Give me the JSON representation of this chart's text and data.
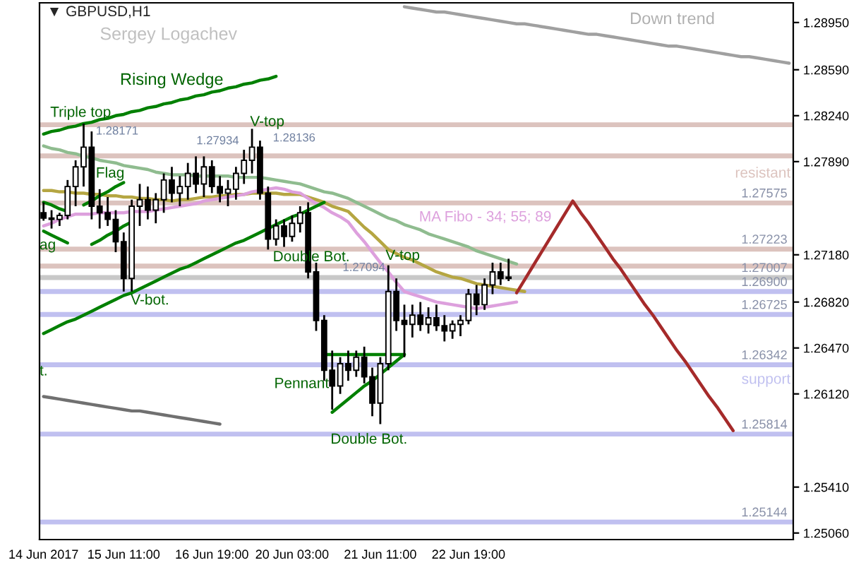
{
  "chart_data": {
    "type": "candlestick",
    "color": "#000000",
    "title": "▼ GBPUSD,H1",
    "subtitle": "Sergey Logachev",
    "categories": [
      "14 Jun 2017",
      null,
      null,
      null,
      null,
      null,
      null,
      null,
      null,
      null,
      "15 Jun 11:00",
      null,
      null,
      null,
      null,
      null,
      null,
      null,
      null,
      null,
      null,
      "16 Jun 19:00",
      null,
      null,
      null,
      null,
      null,
      null,
      null,
      null,
      null,
      "20 Jun 03:00",
      null,
      null,
      null,
      null,
      null,
      null,
      null,
      null,
      null,
      null,
      "21 Jun 11:00",
      null,
      null,
      null,
      null,
      null,
      null,
      null,
      null,
      null,
      null,
      "22 Jun 19:00",
      null,
      null,
      null,
      null,
      null,
      null,
      null,
      null,
      null,
      null,
      null,
      null,
      null,
      null,
      null,
      null,
      null,
      null,
      null,
      null,
      null,
      null,
      null,
      null,
      null,
      null,
      null,
      null,
      null,
      null,
      null,
      null,
      null,
      null,
      null,
      null,
      null,
      null,
      null,
      null
    ],
    "ohlc": [
      [
        1.275,
        1.2758,
        1.2744,
        1.2746
      ],
      [
        1.2746,
        1.2752,
        1.2738,
        1.2745
      ],
      [
        1.2745,
        1.275,
        1.274,
        1.2748
      ],
      [
        1.2748,
        1.2775,
        1.2745,
        1.277
      ],
      [
        1.277,
        1.279,
        1.2755,
        1.2785
      ],
      [
        1.2785,
        1.2818,
        1.277,
        1.28
      ],
      [
        1.28,
        1.2812,
        1.2745,
        1.2755
      ],
      [
        1.2755,
        1.2768,
        1.2738,
        1.275
      ],
      [
        1.275,
        1.2762,
        1.274,
        1.2745
      ],
      [
        1.2745,
        1.2752,
        1.272,
        1.2728
      ],
      [
        1.2728,
        1.2735,
        1.269,
        1.27
      ],
      [
        1.27,
        1.276,
        1.269,
        1.2755
      ],
      [
        1.2755,
        1.2772,
        1.274,
        1.276
      ],
      [
        1.276,
        1.277,
        1.2745,
        1.2752
      ],
      [
        1.2752,
        1.2765,
        1.2742,
        1.276
      ],
      [
        1.276,
        1.278,
        1.275,
        1.2775
      ],
      [
        1.2775,
        1.2785,
        1.2758,
        1.2765
      ],
      [
        1.2765,
        1.2778,
        1.2755,
        1.277
      ],
      [
        1.277,
        1.2788,
        1.276,
        1.278
      ],
      [
        1.278,
        1.2793,
        1.2765,
        1.2772
      ],
      [
        1.2772,
        1.2793,
        1.2762,
        1.2785
      ],
      [
        1.2785,
        1.279,
        1.2765,
        1.277
      ],
      [
        1.277,
        1.2778,
        1.2758,
        1.2765
      ],
      [
        1.2765,
        1.2775,
        1.2755,
        1.2768
      ],
      [
        1.2768,
        1.2785,
        1.276,
        1.278
      ],
      [
        1.278,
        1.2798,
        1.2772,
        1.279
      ],
      [
        1.279,
        1.2814,
        1.278,
        1.28
      ],
      [
        1.28,
        1.2805,
        1.276,
        1.2765
      ],
      [
        1.2765,
        1.277,
        1.2722,
        1.273
      ],
      [
        1.273,
        1.2745,
        1.2725,
        1.274
      ],
      [
        1.274,
        1.2745,
        1.2724,
        1.2732
      ],
      [
        1.2732,
        1.2748,
        1.2728,
        1.2742
      ],
      [
        1.2742,
        1.2755,
        1.2735,
        1.275
      ],
      [
        1.275,
        1.2758,
        1.27,
        1.2705
      ],
      [
        1.2705,
        1.2712,
        1.266,
        1.2668
      ],
      [
        1.2668,
        1.2672,
        1.2622,
        1.263
      ],
      [
        1.263,
        1.2645,
        1.26,
        1.2618
      ],
      [
        1.2618,
        1.264,
        1.2612,
        1.2635
      ],
      [
        1.2635,
        1.2645,
        1.2622,
        1.263
      ],
      [
        1.263,
        1.2645,
        1.2625,
        1.264
      ],
      [
        1.264,
        1.2648,
        1.262,
        1.2625
      ],
      [
        1.2625,
        1.2632,
        1.2595,
        1.2605
      ],
      [
        1.2605,
        1.264,
        1.2589,
        1.2635
      ],
      [
        1.2635,
        1.271,
        1.263,
        1.269
      ],
      [
        1.269,
        1.27,
        1.266,
        1.2668
      ],
      [
        1.2668,
        1.268,
        1.264,
        1.2665
      ],
      [
        1.2665,
        1.268,
        1.2655,
        1.2672
      ],
      [
        1.2672,
        1.2682,
        1.266,
        1.2665
      ],
      [
        1.2665,
        1.2678,
        1.2658,
        1.267
      ],
      [
        1.267,
        1.268,
        1.266,
        1.2664
      ],
      [
        1.2664,
        1.2672,
        1.2652,
        1.266
      ],
      [
        1.266,
        1.2668,
        1.2654,
        1.2665
      ],
      [
        1.2665,
        1.2672,
        1.2656,
        1.2668
      ],
      [
        1.2668,
        1.2692,
        1.2665,
        1.2688
      ],
      [
        1.2688,
        1.2695,
        1.2672,
        1.268
      ],
      [
        1.268,
        1.27,
        1.2676,
        1.2695
      ],
      [
        1.2695,
        1.2712,
        1.2688,
        1.2705
      ],
      [
        1.2705,
        1.2712,
        1.2695,
        1.27
      ],
      [
        1.27,
        1.2715,
        1.2698,
        1.2701
      ],
      null,
      null,
      null,
      null,
      null,
      null,
      null,
      null,
      null,
      null,
      null,
      null,
      null,
      null,
      null,
      null,
      null,
      null,
      null,
      null,
      null,
      null,
      null,
      null,
      null,
      null,
      null,
      null,
      null,
      null,
      null,
      null,
      null,
      null,
      null
    ],
    "series": [
      {
        "type": "line",
        "color": "#8fbc8f",
        "values": [
          1.2801,
          1.2799,
          1.2798,
          1.2796,
          1.2795,
          1.2793,
          1.2792,
          1.279,
          1.2789,
          1.2788,
          1.2786,
          1.2785,
          1.2784,
          1.2783,
          1.2781,
          1.278,
          1.2779,
          1.2779,
          1.2779,
          1.2778,
          1.2778,
          1.2778,
          1.2778,
          1.2778,
          1.2777,
          1.2777,
          1.2777,
          1.2777,
          1.2776,
          1.2775,
          1.2774,
          1.2773,
          1.2772,
          1.277,
          1.2768,
          1.2766,
          1.2765,
          1.2763,
          1.2761,
          1.2758,
          1.2755,
          1.2752,
          1.2749,
          1.2746,
          1.2744,
          1.2741,
          1.2739,
          1.2737,
          1.2734,
          1.2732,
          1.273,
          1.2728,
          1.2726,
          1.2724,
          1.2721,
          1.2719,
          1.2717,
          1.2715,
          1.2713,
          1.2711,
          null,
          null,
          null,
          null,
          null,
          null,
          null,
          null,
          null,
          null,
          null,
          null,
          null,
          null,
          null,
          null,
          null,
          null,
          null,
          null,
          null,
          null,
          null,
          null,
          null,
          null,
          null,
          null,
          null,
          null,
          null,
          null,
          null,
          null
        ]
      },
      {
        "type": "line",
        "color": "#b5a642",
        "values": [
          1.2767,
          1.2767,
          1.2766,
          1.2766,
          1.2765,
          1.2765,
          1.2764,
          1.2764,
          1.2763,
          1.2763,
          1.2762,
          1.2762,
          1.2761,
          1.2761,
          1.276,
          1.276,
          1.2759,
          1.276,
          1.276,
          1.2761,
          1.2762,
          1.2762,
          1.2763,
          1.2763,
          1.2764,
          1.2764,
          1.2765,
          1.2765,
          1.2765,
          1.2765,
          1.2764,
          1.2764,
          1.2764,
          1.2762,
          1.276,
          1.2758,
          1.2755,
          1.2753,
          1.2751,
          1.2745,
          1.2739,
          1.2734,
          1.2728,
          1.2722,
          1.2719,
          1.2716,
          1.2714,
          1.2711,
          1.2708,
          1.2705,
          1.2703,
          1.2701,
          1.27,
          1.2698,
          1.2696,
          1.2695,
          1.2694,
          1.2693,
          1.2692,
          1.2691,
          1.269,
          null,
          null,
          null,
          null,
          null,
          null,
          null,
          null,
          null,
          null,
          null,
          null,
          null,
          null,
          null,
          null,
          null,
          null,
          null,
          null,
          null,
          null,
          null,
          null,
          null,
          null,
          null,
          null,
          null,
          null,
          null,
          null,
          null
        ]
      },
      {
        "type": "line",
        "color": "#dda0dd",
        "values": [
          1.274,
          1.2742,
          1.2745,
          1.2747,
          1.2749,
          1.2749,
          1.2749,
          1.275,
          1.275,
          1.275,
          1.275,
          1.2751,
          1.2751,
          1.2751,
          1.2752,
          1.2753,
          1.2754,
          1.2755,
          1.2756,
          1.2757,
          1.2759,
          1.276,
          1.2761,
          1.2762,
          1.2763,
          1.2764,
          1.2766,
          1.2767,
          1.2768,
          1.2769,
          1.2768,
          1.2766,
          1.2765,
          1.2761,
          1.2757,
          1.2754,
          1.275,
          1.2747,
          1.2743,
          1.2735,
          1.2728,
          1.272,
          1.2712,
          1.2705,
          1.2697,
          1.269,
          1.2688,
          1.2686,
          1.2684,
          1.2682,
          1.2681,
          1.268,
          1.2679,
          1.2678,
          1.2677,
          1.2678,
          1.2679,
          1.268,
          1.2681,
          1.2682,
          null,
          null,
          null,
          null,
          null,
          null,
          null,
          null,
          null,
          null,
          null,
          null,
          null,
          null,
          null,
          null,
          null,
          null,
          null,
          null,
          null,
          null,
          null,
          null,
          null,
          null,
          null,
          null,
          null,
          null,
          null,
          null,
          null,
          null
        ]
      },
      {
        "type": "line",
        "color": "#008000",
        "values": [
          1.281,
          1.2812,
          1.2813,
          1.2815,
          1.2816,
          1.2818,
          1.2819,
          1.2821,
          1.2822,
          1.2824,
          1.2825,
          1.2827,
          1.2828,
          1.283,
          1.2831,
          1.2833,
          1.2834,
          1.2836,
          1.2837,
          1.2839,
          1.284,
          1.2842,
          1.2843,
          1.2845,
          1.2846,
          1.2848,
          1.2849,
          1.2851,
          1.2852,
          1.2854,
          null,
          null,
          null,
          null,
          null,
          null,
          null,
          null,
          null,
          null,
          null,
          null,
          null,
          null,
          null,
          null,
          null,
          null,
          null,
          null,
          null,
          null,
          null,
          null,
          null,
          null,
          null,
          null,
          null,
          null,
          null,
          null,
          null,
          null,
          null,
          null,
          null,
          null,
          null,
          null,
          null,
          null,
          null,
          null,
          null,
          null,
          null,
          null,
          null,
          null,
          null,
          null,
          null,
          null,
          null,
          null,
          null,
          null,
          null,
          null,
          null,
          null,
          null,
          null
        ]
      },
      {
        "type": "line",
        "color": "#008000",
        "values": [
          1.2658,
          1.2661,
          1.2664,
          1.2667,
          1.2669,
          1.2672,
          1.2675,
          1.2678,
          1.2681,
          1.2684,
          1.2687,
          1.2689,
          1.2692,
          1.2695,
          1.2698,
          1.2701,
          1.2704,
          1.2707,
          1.2709,
          1.2712,
          1.2715,
          1.2718,
          1.2721,
          1.2724,
          1.2727,
          1.2729,
          1.2732,
          1.2735,
          1.2738,
          1.2741,
          1.2744,
          1.2747,
          1.2749,
          1.2752,
          1.2755,
          1.2758,
          null,
          null,
          null,
          null,
          null,
          null,
          null,
          null,
          null,
          null,
          null,
          null,
          null,
          null,
          null,
          null,
          null,
          null,
          null,
          null,
          null,
          null,
          null,
          null,
          null,
          null,
          null,
          null,
          null,
          null,
          null,
          null,
          null,
          null,
          null,
          null,
          null,
          null,
          null,
          null,
          null,
          null,
          null,
          null,
          null,
          null,
          null,
          null,
          null,
          null,
          null,
          null,
          null,
          null,
          null,
          null,
          null,
          null
        ]
      },
      {
        "type": "line",
        "color": "#008000",
        "values": [
          1.2758,
          1.2756,
          1.2753,
          1.2751,
          null,
          null,
          null,
          null,
          null,
          null,
          null,
          null,
          null,
          null,
          null,
          null,
          null,
          null,
          null,
          null,
          null,
          null,
          null,
          null,
          null,
          null,
          null,
          null,
          null,
          null,
          null,
          null,
          null,
          null,
          null,
          null,
          null,
          null,
          null,
          null,
          null,
          null,
          null,
          null,
          null,
          null,
          null,
          null,
          null,
          null,
          null,
          null,
          null,
          null,
          null,
          null,
          null,
          null,
          null,
          null,
          null,
          null,
          null,
          null,
          null,
          null,
          null,
          null,
          null,
          null,
          null,
          null,
          null,
          null,
          null,
          null,
          null,
          null,
          null,
          null,
          null,
          null,
          null,
          null,
          null,
          null,
          null,
          null,
          null,
          null,
          null,
          null,
          null,
          null
        ]
      },
      {
        "type": "line",
        "color": "#008000",
        "values": [
          1.2736,
          1.2733,
          1.273,
          1.2727,
          null,
          null,
          null,
          null,
          null,
          null,
          null,
          null,
          null,
          null,
          null,
          null,
          null,
          null,
          null,
          null,
          null,
          null,
          null,
          null,
          null,
          null,
          null,
          null,
          null,
          null,
          null,
          null,
          null,
          null,
          null,
          null,
          null,
          null,
          null,
          null,
          null,
          null,
          null,
          null,
          null,
          null,
          null,
          null,
          null,
          null,
          null,
          null,
          null,
          null,
          null,
          null,
          null,
          null,
          null,
          null,
          null,
          null,
          null,
          null,
          null,
          null,
          null,
          null,
          null,
          null,
          null,
          null,
          null,
          null,
          null,
          null,
          null,
          null,
          null,
          null,
          null,
          null,
          null,
          null,
          null,
          null,
          null,
          null,
          null,
          null,
          null,
          null,
          null,
          null
        ]
      },
      {
        "type": "line",
        "color": "#008000",
        "values": [
          null,
          null,
          null,
          null,
          null,
          1.2756,
          1.2759,
          1.2763,
          1.2766,
          1.277,
          1.2773,
          null,
          null,
          null,
          null,
          null,
          null,
          null,
          null,
          null,
          null,
          null,
          null,
          null,
          null,
          null,
          null,
          null,
          null,
          null,
          null,
          null,
          null,
          null,
          null,
          null,
          null,
          null,
          null,
          null,
          null,
          null,
          null,
          null,
          null,
          null,
          null,
          null,
          null,
          null,
          null,
          null,
          null,
          null,
          null,
          null,
          null,
          null,
          null,
          null,
          null,
          null,
          null,
          null,
          null,
          null,
          null,
          null,
          null,
          null,
          null,
          null,
          null,
          null,
          null,
          null,
          null,
          null,
          null,
          null,
          null,
          null,
          null,
          null,
          null,
          null,
          null,
          null,
          null,
          null,
          null,
          null,
          null,
          null
        ]
      },
      {
        "type": "line",
        "color": "#008000",
        "values": [
          null,
          null,
          null,
          null,
          null,
          null,
          1.2726,
          1.2729,
          1.2733,
          1.2736,
          1.274,
          1.2743,
          null,
          null,
          null,
          null,
          null,
          null,
          null,
          null,
          null,
          null,
          null,
          null,
          null,
          null,
          null,
          null,
          null,
          null,
          null,
          null,
          null,
          null,
          null,
          null,
          null,
          null,
          null,
          null,
          null,
          null,
          null,
          null,
          null,
          null,
          null,
          null,
          null,
          null,
          null,
          null,
          null,
          null,
          null,
          null,
          null,
          null,
          null,
          null,
          null,
          null,
          null,
          null,
          null,
          null,
          null,
          null,
          null,
          null,
          null,
          null,
          null,
          null,
          null,
          null,
          null,
          null,
          null,
          null,
          null,
          null,
          null,
          null,
          null,
          null,
          null,
          null,
          null,
          null,
          null,
          null,
          null,
          null
        ]
      },
      {
        "type": "line",
        "color": "#008000",
        "values": [
          null,
          null,
          null,
          null,
          null,
          null,
          null,
          null,
          null,
          null,
          null,
          null,
          null,
          null,
          null,
          null,
          null,
          null,
          null,
          null,
          null,
          null,
          null,
          null,
          null,
          null,
          null,
          null,
          null,
          null,
          null,
          null,
          null,
          null,
          null,
          1.2642,
          1.2642,
          1.2642,
          1.2642,
          1.2642,
          1.2642,
          1.2642,
          1.2642,
          1.2642,
          1.2642,
          1.2642,
          null,
          null,
          null,
          null,
          null,
          null,
          null,
          null,
          null,
          null,
          null,
          null,
          null,
          null,
          null,
          null,
          null,
          null,
          null,
          null,
          null,
          null,
          null,
          null,
          null,
          null,
          null,
          null,
          null,
          null,
          null,
          null,
          null,
          null,
          null,
          null,
          null,
          null,
          null,
          null,
          null,
          null,
          null,
          null,
          null,
          null,
          null,
          null
        ]
      },
      {
        "type": "line",
        "color": "#008000",
        "values": [
          null,
          null,
          null,
          null,
          null,
          null,
          null,
          null,
          null,
          null,
          null,
          null,
          null,
          null,
          null,
          null,
          null,
          null,
          null,
          null,
          null,
          null,
          null,
          null,
          null,
          null,
          null,
          null,
          null,
          null,
          null,
          null,
          null,
          null,
          null,
          null,
          1.2598,
          1.2603,
          1.2608,
          1.2613,
          1.2618,
          1.2622,
          1.2627,
          1.2632,
          1.2637,
          1.2642,
          null,
          null,
          null,
          null,
          null,
          null,
          null,
          null,
          null,
          null,
          null,
          null,
          null,
          null,
          null,
          null,
          null,
          null,
          null,
          null,
          null,
          null,
          null,
          null,
          null,
          null,
          null,
          null,
          null,
          null,
          null,
          null,
          null,
          null,
          null,
          null,
          null,
          null,
          null,
          null,
          null,
          null,
          null,
          null,
          null,
          null,
          null,
          null
        ]
      },
      {
        "type": "line",
        "color": "#a0a0a0",
        "values": [
          null,
          null,
          null,
          null,
          null,
          null,
          null,
          null,
          null,
          null,
          null,
          null,
          null,
          null,
          null,
          null,
          null,
          null,
          null,
          null,
          null,
          null,
          null,
          null,
          null,
          null,
          null,
          null,
          null,
          null,
          null,
          null,
          null,
          null,
          null,
          null,
          null,
          null,
          null,
          null,
          null,
          null,
          null,
          null,
          null,
          1.2907,
          1.2906,
          1.2905,
          1.2904,
          1.2903,
          1.2903,
          1.2902,
          1.2901,
          1.29,
          1.2899,
          1.2898,
          1.2897,
          1.2896,
          1.2895,
          1.2894,
          1.2894,
          1.2893,
          1.2892,
          1.2891,
          1.289,
          1.2889,
          1.2888,
          1.2887,
          1.2886,
          1.2886,
          1.2885,
          1.2884,
          1.2883,
          1.2882,
          1.2881,
          1.288,
          1.2879,
          1.2878,
          1.2877,
          1.2877,
          1.2876,
          1.2875,
          1.2874,
          1.2873,
          1.2872,
          1.2871,
          1.287,
          1.2869,
          1.2869,
          1.2868,
          1.2867,
          1.2866,
          1.2865,
          1.2864
        ]
      },
      {
        "type": "line",
        "color": "#707070",
        "values": [
          1.261,
          1.2609,
          1.2608,
          1.2607,
          1.2606,
          1.2605,
          1.2604,
          1.2603,
          1.2602,
          1.2601,
          1.26,
          1.2599,
          1.2599,
          1.2598,
          1.2597,
          1.2596,
          1.2595,
          1.2594,
          1.2593,
          1.2592,
          1.2591,
          1.259,
          1.2589,
          null,
          null,
          null,
          null,
          null,
          null,
          null,
          null,
          null,
          null,
          null,
          null,
          null,
          null,
          null,
          null,
          null,
          null,
          null,
          null,
          null,
          null,
          null,
          null,
          null,
          null,
          null,
          null,
          null,
          null,
          null,
          null,
          null,
          null,
          null,
          null,
          null,
          null,
          null,
          null,
          null,
          null,
          null,
          null,
          null,
          null,
          null,
          null,
          null,
          null,
          null,
          null,
          null,
          null,
          null,
          null,
          null,
          null,
          null,
          null,
          null,
          null,
          null,
          null,
          null,
          null,
          null,
          null,
          null,
          null,
          null
        ]
      },
      {
        "type": "line",
        "color": "#a52a2a",
        "values": [
          null,
          null,
          null,
          null,
          null,
          null,
          null,
          null,
          null,
          null,
          null,
          null,
          null,
          null,
          null,
          null,
          null,
          null,
          null,
          null,
          null,
          null,
          null,
          null,
          null,
          null,
          null,
          null,
          null,
          null,
          null,
          null,
          null,
          null,
          null,
          null,
          null,
          null,
          null,
          null,
          null,
          null,
          null,
          null,
          null,
          null,
          null,
          null,
          null,
          null,
          null,
          null,
          null,
          null,
          null,
          null,
          null,
          null,
          null,
          1.2689,
          1.2699,
          1.2709,
          1.2719,
          1.2729,
          1.2739,
          1.2749,
          1.2759,
          1.275,
          1.2742,
          1.2733,
          1.2724,
          1.2715,
          1.2707,
          1.2698,
          1.2689,
          1.268,
          1.2672,
          1.2663,
          1.2654,
          1.2645,
          1.2637,
          1.2628,
          1.2619,
          1.261,
          1.2602,
          1.2593,
          1.2584,
          null,
          null,
          null,
          null,
          null,
          null,
          null
        ]
      }
    ],
    "ref_lines": [
      {
        "axis": "y",
        "value": 1.28171,
        "label": null,
        "color": "#dcc3be"
      },
      {
        "axis": "y",
        "value": 1.27934,
        "label": null,
        "color": "#dcc3be"
      },
      {
        "axis": "y",
        "value": 1.27575,
        "label": "1.27575",
        "color": "#dcc3be"
      },
      {
        "axis": "y",
        "value": 1.27223,
        "label": "1.27223",
        "color": "#dcc3be"
      },
      {
        "axis": "y",
        "value": 1.27094,
        "label": null,
        "color": "#dcc3be"
      },
      {
        "axis": "y",
        "value": 1.27007,
        "label": "1.27007",
        "color": "#c8c8c8"
      },
      {
        "axis": "y",
        "value": 1.269,
        "label": "1.26900",
        "color": "#c0c0f0"
      },
      {
        "axis": "y",
        "value": 1.26725,
        "label": "1.26725",
        "color": "#c0c0f0"
      },
      {
        "axis": "y",
        "value": 1.26342,
        "label": "1.26342",
        "color": "#c0c0f0"
      },
      {
        "axis": "y",
        "value": 1.25814,
        "label": "1.25814",
        "color": "#c0c0f0"
      },
      {
        "axis": "y",
        "value": 1.25144,
        "label": "1.25144",
        "color": "#c0c0f0"
      }
    ],
    "annotations": [
      "Down trend",
      "Rising Wedge",
      "Triple top",
      {
        "text": "1.28171",
        "y": 1.2812
      },
      "Flag",
      {
        "text": "ag",
        "y": 1.2725
      },
      "1.27934",
      {
        "text": "V-top",
        "y": 1.2819
      },
      "1.28136",
      "MA Fibo - 34; 55; 89",
      "resistant",
      {
        "text": "Double Bot.",
        "y": 1.2716
      },
      {
        "text": "1.27094",
        "y": 1.2708
      },
      {
        "text": "V-top",
        "y": 1.2717
      },
      {
        "text": "V-bot.",
        "y": 1.2683
      },
      {
        "text": "t.",
        "y": 1.2629
      },
      "Pennant",
      {
        "text": "Double Bot.",
        "y": 1.2577
      },
      "support"
    ],
    "ylim": [
      1.2501,
      1.291
    ],
    "yticks": [
      {
        "value": 1.2895,
        "label": "1.28950"
      },
      {
        "value": 1.2859,
        "label": "1.28590"
      },
      {
        "value": 1.2824,
        "label": "1.28240"
      },
      {
        "value": 1.2789,
        "label": "1.27890"
      },
      {
        "value": 1.2718,
        "label": "1.27180"
      },
      {
        "value": 1.2682,
        "label": "1.26820"
      },
      {
        "value": 1.2647,
        "label": "1.26470"
      },
      {
        "value": 1.2612,
        "label": "1.26120"
      },
      {
        "value": 1.2541,
        "label": "1.25410"
      },
      {
        "value": 1.2506,
        "label": "1.25060"
      }
    ],
    "grid": false,
    "legend": false
  }
}
